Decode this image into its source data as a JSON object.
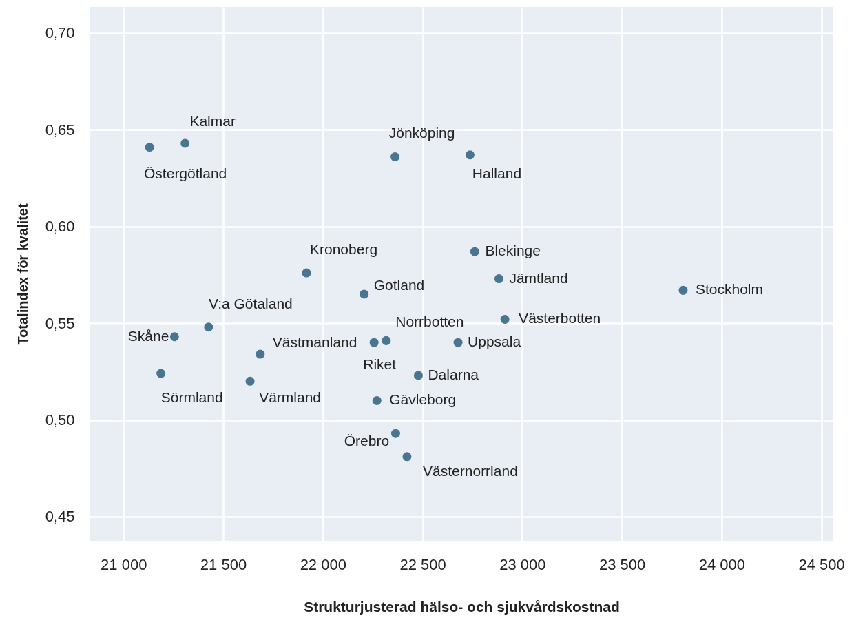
{
  "chart_data": {
    "type": "scatter",
    "xlabel": "Strukturjusterad hälso- och sjukvårdskostnad",
    "ylabel": "Totalindex för kvalitet",
    "xlim": [
      20830,
      24560
    ],
    "ylim": [
      0.4375,
      0.7135
    ],
    "xticks": [
      {
        "value": 21000,
        "label": "21 000"
      },
      {
        "value": 21500,
        "label": "21 500"
      },
      {
        "value": 22000,
        "label": "22 000"
      },
      {
        "value": 22500,
        "label": "22 500"
      },
      {
        "value": 23000,
        "label": "23 000"
      },
      {
        "value": 23500,
        "label": "23 500"
      },
      {
        "value": 24000,
        "label": "24 000"
      },
      {
        "value": 24500,
        "label": "24 500"
      }
    ],
    "yticks": [
      {
        "value": 0.45,
        "label": "0,45"
      },
      {
        "value": 0.5,
        "label": "0,50"
      },
      {
        "value": 0.55,
        "label": "0,55"
      },
      {
        "value": 0.6,
        "label": "0,60"
      },
      {
        "value": 0.65,
        "label": "0,65"
      },
      {
        "value": 0.7,
        "label": "0,70"
      }
    ],
    "grid": true,
    "marker": "circle",
    "series": [
      {
        "color": "#4a7591",
        "x": [
          21131,
          21309,
          22362,
          22738,
          22762,
          22883,
          23807,
          21918,
          22207,
          22913,
          21427,
          21256,
          22318,
          22257,
          22678,
          21686,
          21188,
          22479,
          21635,
          22271,
          22365,
          22422
        ],
        "values": [
          0.641,
          0.643,
          0.636,
          0.637,
          0.587,
          0.573,
          0.567,
          0.576,
          0.565,
          0.552,
          0.548,
          0.543,
          0.541,
          0.54,
          0.54,
          0.534,
          0.524,
          0.523,
          0.52,
          0.51,
          0.493,
          0.481
        ]
      }
    ],
    "annotations": [
      {
        "text": "Östergötland",
        "x": 21131,
        "y": 0.641
      },
      {
        "text": "Kalmar",
        "x": 21309,
        "y": 0.643
      },
      {
        "text": "Jönköping",
        "x": 22362,
        "y": 0.636
      },
      {
        "text": "Halland",
        "x": 22738,
        "y": 0.637
      },
      {
        "text": "Blekinge",
        "x": 22762,
        "y": 0.587
      },
      {
        "text": "Jämtland",
        "x": 22883,
        "y": 0.573
      },
      {
        "text": "Stockholm",
        "x": 23807,
        "y": 0.567
      },
      {
        "text": "Kronoberg",
        "x": 21918,
        "y": 0.576
      },
      {
        "text": "Gotland",
        "x": 22207,
        "y": 0.565
      },
      {
        "text": "Västerbotten",
        "x": 22913,
        "y": 0.552
      },
      {
        "text": "V:a Götaland",
        "x": 21427,
        "y": 0.548
      },
      {
        "text": "Skåne",
        "x": 21256,
        "y": 0.543
      },
      {
        "text": "Norrbotten",
        "x": 22318,
        "y": 0.541
      },
      {
        "text": "Riket",
        "x": 22257,
        "y": 0.54
      },
      {
        "text": "Uppsala",
        "x": 22678,
        "y": 0.54
      },
      {
        "text": "Västmanland",
        "x": 21686,
        "y": 0.534
      },
      {
        "text": "Sörmland",
        "x": 21188,
        "y": 0.524
      },
      {
        "text": "Dalarna",
        "x": 22479,
        "y": 0.523
      },
      {
        "text": "Värmland",
        "x": 21635,
        "y": 0.52
      },
      {
        "text": "Gävleborg",
        "x": 22271,
        "y": 0.51
      },
      {
        "text": "Örebro",
        "x": 22365,
        "y": 0.493
      },
      {
        "text": "Västernorrland",
        "x": 22422,
        "y": 0.481
      }
    ]
  }
}
